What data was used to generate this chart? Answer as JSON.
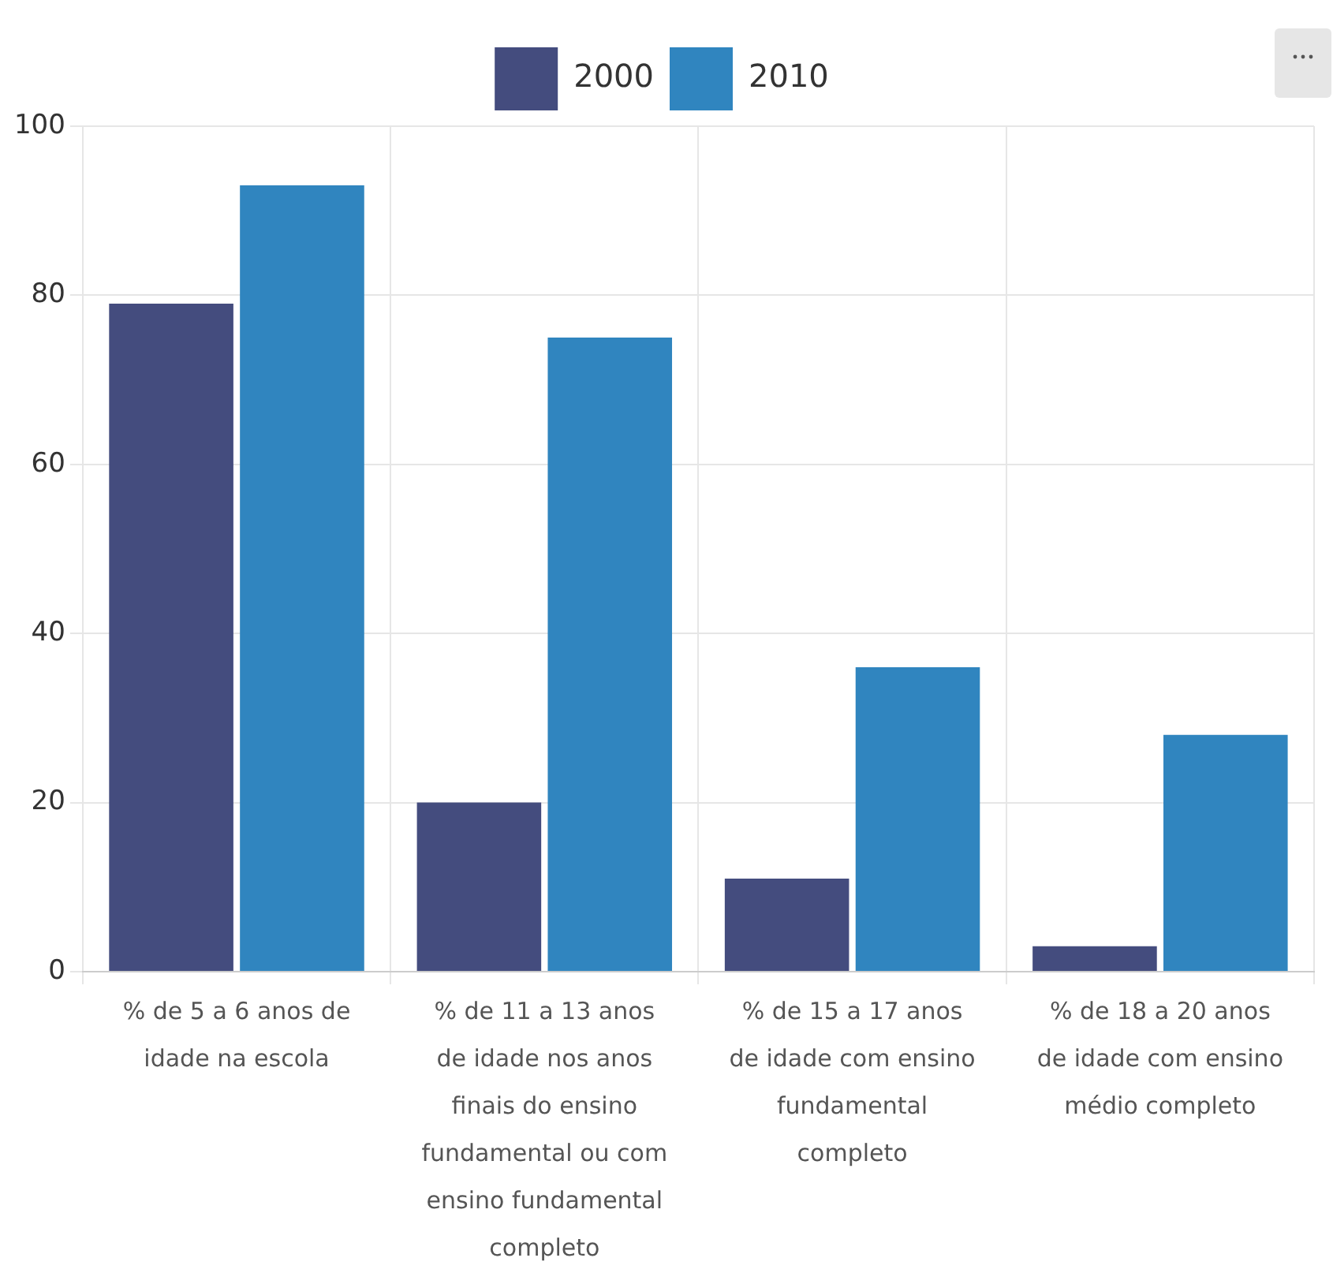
{
  "chart_data": {
    "type": "bar",
    "categories": [
      "% de 5 a 6 anos de idade na escola",
      "% de 11 a 13 anos de idade nos anos finais do ensino fundamental ou com ensino fundamental completo",
      "% de 15 a 17 anos de idade com ensino fundamental completo",
      "% de 18 a 20 anos de idade com ensino médio completo"
    ],
    "series": [
      {
        "name": "2000",
        "color": "#444c7e",
        "values": [
          79,
          20,
          11,
          3
        ]
      },
      {
        "name": "2010",
        "color": "#3085bf",
        "values": [
          93,
          75,
          36,
          28
        ]
      }
    ],
    "ylim": [
      0,
      100
    ],
    "yticks": [
      0,
      20,
      40,
      60,
      80,
      100
    ],
    "grid": true,
    "legend": "top"
  }
}
